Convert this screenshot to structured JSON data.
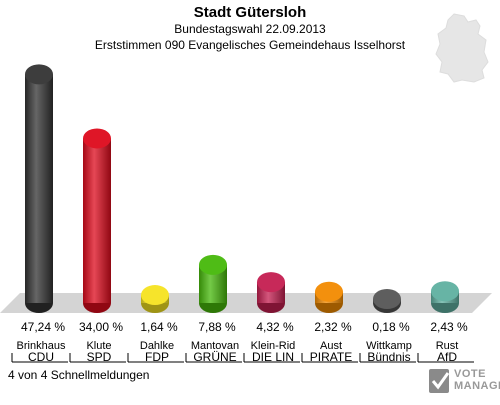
{
  "header": {
    "title": "Stadt Gütersloh",
    "subtitle": "Bundestagswahl 22.09.2013",
    "district": "Erststimmen 090 Evangelisches Gemeindehaus Isselhorst"
  },
  "footer": {
    "status": "4 von 4 Schnellmeldungen"
  },
  "logo": {
    "line1": "VOTE",
    "line2": "MANAGER"
  },
  "chart_data": {
    "type": "bar",
    "title": "Stadt Gütersloh",
    "candidates": [
      "Brinkhaus",
      "Klute",
      "Dahlke",
      "Mantovan",
      "Klein-Rid",
      "Aust",
      "Wittkamp",
      "Rust"
    ],
    "categories": [
      "CDU",
      "SPD",
      "FDP",
      "GRÜNE",
      "DIE LIN",
      "PIRATE",
      "Bündnis",
      "AfD"
    ],
    "values": [
      47.24,
      34.0,
      1.64,
      7.88,
      4.32,
      2.32,
      0.18,
      2.43
    ],
    "value_labels": [
      "47,24 %",
      "34,00 %",
      "1,64 %",
      "7,88 %",
      "4,32 %",
      "2,32 %",
      "0,18 %",
      "2,43 %"
    ],
    "colors": [
      "#333333",
      "#dd0a1c",
      "#f5e320",
      "#46b80a",
      "#c41e50",
      "#f28a00",
      "#555555",
      "#5fb0a0"
    ],
    "ylim": [
      0,
      50
    ]
  }
}
